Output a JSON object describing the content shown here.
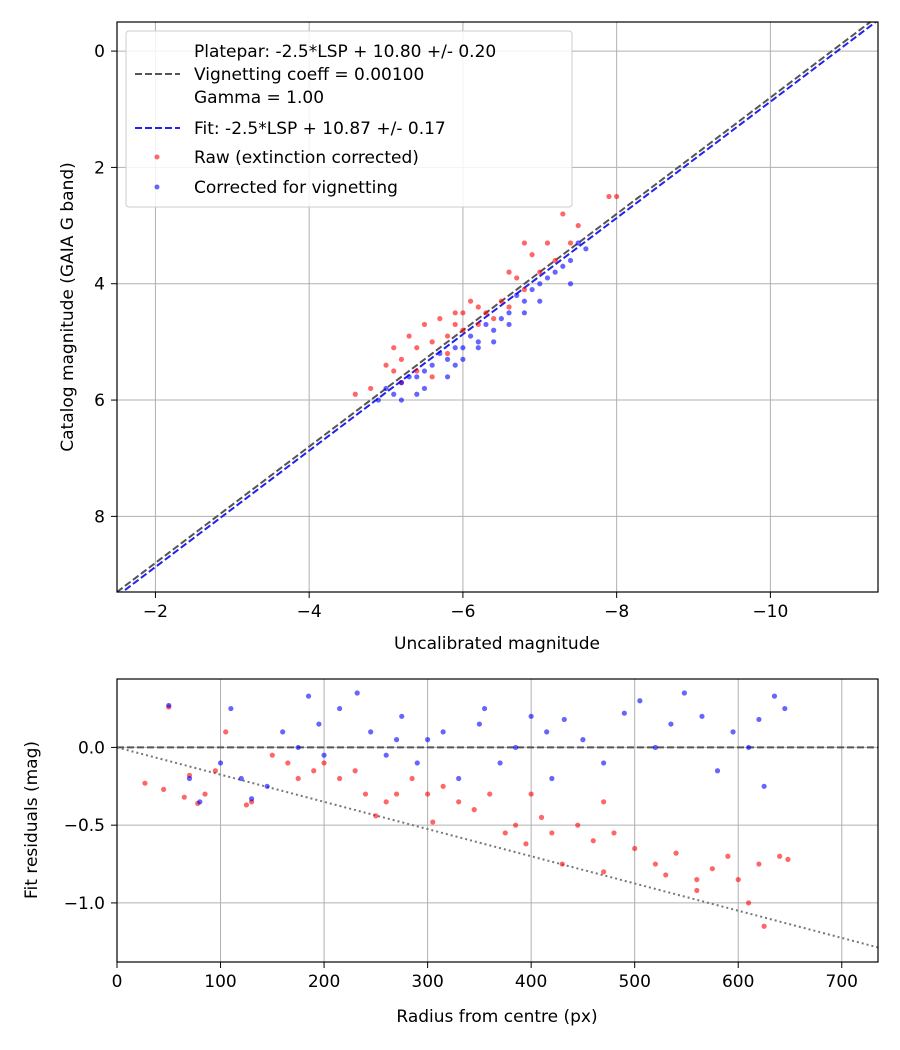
{
  "chart_data": [
    {
      "type": "scatter",
      "xlabel": "Uncalibrated magnitude",
      "ylabel": "Catalog magnitude (GAIA G band)",
      "xlim": [
        -1.5,
        -11.4
      ],
      "ylim": [
        9.3,
        -0.5
      ],
      "xticks": [
        -2,
        -4,
        -6,
        -8,
        -10
      ],
      "xtick_labels": [
        "−2",
        "−4",
        "−6",
        "−8",
        "−10"
      ],
      "yticks": [
        0,
        2,
        4,
        6,
        8
      ],
      "ytick_labels": [
        "0",
        "2",
        "4",
        "6",
        "8"
      ],
      "grid": true,
      "legend_position": "top-left",
      "legend": {
        "platepar_lines": [
          "Platepar: -2.5*LSP + 10.80 +/- 0.20",
          "Vignetting coeff = 0.00100",
          "Gamma = 1.00"
        ],
        "fit_label": "Fit: -2.5*LSP + 10.87 +/- 0.17",
        "raw_label": "Raw (extinction corrected)",
        "corrected_label": "Corrected for vignetting"
      },
      "lines": [
        {
          "name": "Platepar",
          "slope": 1.0,
          "intercept": 10.8,
          "style": "dashed",
          "color": "#555555"
        },
        {
          "name": "Fit",
          "slope": 1.0,
          "intercept": 10.87,
          "style": "dashed",
          "color": "#2222ee"
        }
      ],
      "series": [
        {
          "name": "Raw (extinction corrected)",
          "color": "#ff0000",
          "points": [
            [
              -5.0,
              5.4
            ],
            [
              -5.2,
              5.3
            ],
            [
              -5.4,
              5.5
            ],
            [
              -5.6,
              5.0
            ],
            [
              -5.8,
              5.2
            ],
            [
              -6.0,
              4.8
            ],
            [
              -6.2,
              4.7
            ],
            [
              -6.4,
              4.6
            ],
            [
              -6.6,
              4.4
            ],
            [
              -6.8,
              4.1
            ],
            [
              -7.0,
              3.8
            ],
            [
              -7.2,
              3.6
            ],
            [
              -7.1,
              3.3
            ],
            [
              -7.3,
              2.8
            ],
            [
              -7.5,
              3.0
            ],
            [
              -8.0,
              2.5
            ],
            [
              -7.9,
              2.5
            ],
            [
              -4.6,
              5.9
            ],
            [
              -4.8,
              5.8
            ],
            [
              -5.1,
              5.1
            ],
            [
              -5.3,
              4.9
            ],
            [
              -5.5,
              4.7
            ],
            [
              -5.7,
              4.6
            ],
            [
              -5.9,
              4.5
            ],
            [
              -6.1,
              4.3
            ],
            [
              -6.3,
              4.5
            ],
            [
              -6.5,
              4.3
            ],
            [
              -6.7,
              3.9
            ],
            [
              -6.9,
              3.5
            ],
            [
              -7.4,
              3.3
            ],
            [
              -5.2,
              5.7
            ],
            [
              -5.6,
              5.6
            ],
            [
              -5.8,
              4.9
            ],
            [
              -6.0,
              4.5
            ],
            [
              -6.6,
              3.8
            ],
            [
              -6.8,
              3.3
            ],
            [
              -5.1,
              5.5
            ],
            [
              -5.4,
              5.1
            ],
            [
              -5.9,
              4.7
            ],
            [
              -6.2,
              4.4
            ]
          ]
        },
        {
          "name": "Corrected for vignetting",
          "color": "#0000ff",
          "points": [
            [
              -5.0,
              5.8
            ],
            [
              -5.2,
              5.7
            ],
            [
              -5.4,
              5.6
            ],
            [
              -5.6,
              5.4
            ],
            [
              -5.8,
              5.3
            ],
            [
              -6.0,
              5.1
            ],
            [
              -6.2,
              5.0
            ],
            [
              -6.4,
              4.8
            ],
            [
              -6.6,
              4.5
            ],
            [
              -6.8,
              4.3
            ],
            [
              -7.0,
              4.0
            ],
            [
              -7.2,
              3.8
            ],
            [
              -7.4,
              3.6
            ],
            [
              -7.5,
              3.3
            ],
            [
              -4.9,
              6.0
            ],
            [
              -5.1,
              5.9
            ],
            [
              -5.3,
              5.6
            ],
            [
              -5.5,
              5.5
            ],
            [
              -5.7,
              5.2
            ],
            [
              -5.9,
              5.1
            ],
            [
              -6.1,
              4.9
            ],
            [
              -6.3,
              4.7
            ],
            [
              -6.5,
              4.6
            ],
            [
              -6.7,
              4.2
            ],
            [
              -6.9,
              4.1
            ],
            [
              -7.1,
              3.9
            ],
            [
              -7.3,
              3.7
            ],
            [
              -7.6,
              3.4
            ],
            [
              -5.2,
              6.0
            ],
            [
              -5.5,
              5.8
            ],
            [
              -5.8,
              5.6
            ],
            [
              -6.0,
              5.3
            ],
            [
              -6.4,
              5.0
            ],
            [
              -6.6,
              4.7
            ],
            [
              -7.0,
              4.3
            ],
            [
              -7.4,
              4.0
            ],
            [
              -5.4,
              5.9
            ],
            [
              -5.9,
              5.4
            ],
            [
              -6.2,
              5.1
            ],
            [
              -6.8,
              4.5
            ]
          ]
        }
      ]
    },
    {
      "type": "scatter",
      "xlabel": "Radius from centre (px)",
      "ylabel": "Fit residuals (mag)",
      "xlim": [
        0,
        735
      ],
      "ylim": [
        -1.38,
        0.44
      ],
      "xticks": [
        0,
        100,
        200,
        300,
        400,
        500,
        600,
        700
      ],
      "xtick_labels": [
        "0",
        "100",
        "200",
        "300",
        "400",
        "500",
        "600",
        "700"
      ],
      "yticks": [
        0.0,
        -0.5,
        -1.0
      ],
      "ytick_labels": [
        "0.0",
        "−0.5",
        "−1.0"
      ],
      "grid": true,
      "lines": [
        {
          "name": "Zero line",
          "slope": 0,
          "intercept": 0,
          "style": "dashed",
          "color": "#555555"
        },
        {
          "name": "Vignetting model",
          "slope": -0.00175,
          "intercept": 0.0,
          "style": "dotted",
          "color": "#777777"
        }
      ],
      "series": [
        {
          "name": "Raw (extinction corrected)",
          "color": "#ff0000",
          "points": [
            [
              27,
              -0.23
            ],
            [
              45,
              -0.27
            ],
            [
              50,
              0.26
            ],
            [
              65,
              -0.32
            ],
            [
              70,
              -0.18
            ],
            [
              78,
              -0.36
            ],
            [
              85,
              -0.3
            ],
            [
              95,
              -0.15
            ],
            [
              105,
              0.1
            ],
            [
              125,
              -0.37
            ],
            [
              130,
              -0.35
            ],
            [
              150,
              -0.05
            ],
            [
              165,
              -0.1
            ],
            [
              175,
              -0.2
            ],
            [
              190,
              -0.15
            ],
            [
              200,
              -0.1
            ],
            [
              215,
              -0.2
            ],
            [
              230,
              -0.15
            ],
            [
              240,
              -0.3
            ],
            [
              250,
              -0.44
            ],
            [
              260,
              -0.35
            ],
            [
              270,
              -0.3
            ],
            [
              285,
              -0.2
            ],
            [
              300,
              -0.3
            ],
            [
              305,
              -0.48
            ],
            [
              315,
              -0.25
            ],
            [
              330,
              -0.35
            ],
            [
              345,
              -0.4
            ],
            [
              360,
              -0.3
            ],
            [
              375,
              -0.55
            ],
            [
              385,
              -0.5
            ],
            [
              395,
              -0.62
            ],
            [
              410,
              -0.45
            ],
            [
              420,
              -0.55
            ],
            [
              430,
              -0.75
            ],
            [
              445,
              -0.5
            ],
            [
              460,
              -0.6
            ],
            [
              470,
              -0.8
            ],
            [
              480,
              -0.55
            ],
            [
              500,
              -0.65
            ],
            [
              520,
              -0.75
            ],
            [
              540,
              -0.68
            ],
            [
              560,
              -0.85
            ],
            [
              575,
              -0.78
            ],
            [
              590,
              -0.7
            ],
            [
              600,
              -0.85
            ],
            [
              610,
              -1.0
            ],
            [
              620,
              -0.75
            ],
            [
              625,
              -1.15
            ],
            [
              640,
              -0.7
            ],
            [
              648,
              -0.72
            ],
            [
              560,
              -0.92
            ],
            [
              530,
              -0.82
            ],
            [
              470,
              -0.35
            ],
            [
              400,
              -0.3
            ]
          ]
        },
        {
          "name": "Corrected for vignetting",
          "color": "#0000ff",
          "points": [
            [
              50,
              0.27
            ],
            [
              70,
              -0.2
            ],
            [
              80,
              -0.35
            ],
            [
              100,
              -0.1
            ],
            [
              110,
              0.25
            ],
            [
              130,
              -0.33
            ],
            [
              145,
              -0.25
            ],
            [
              160,
              0.1
            ],
            [
              175,
              0.0
            ],
            [
              185,
              0.33
            ],
            [
              200,
              -0.05
            ],
            [
              215,
              0.25
            ],
            [
              232,
              0.35
            ],
            [
              245,
              0.1
            ],
            [
              260,
              -0.05
            ],
            [
              275,
              0.2
            ],
            [
              290,
              -0.1
            ],
            [
              300,
              0.05
            ],
            [
              315,
              0.1
            ],
            [
              330,
              -0.2
            ],
            [
              350,
              0.15
            ],
            [
              370,
              -0.1
            ],
            [
              385,
              0.0
            ],
            [
              400,
              0.2
            ],
            [
              415,
              0.1
            ],
            [
              432,
              0.18
            ],
            [
              450,
              0.05
            ],
            [
              470,
              -0.1
            ],
            [
              490,
              0.22
            ],
            [
              505,
              0.3
            ],
            [
              520,
              0.0
            ],
            [
              535,
              0.15
            ],
            [
              548,
              0.35
            ],
            [
              565,
              0.2
            ],
            [
              580,
              -0.15
            ],
            [
              595,
              0.1
            ],
            [
              610,
              0.0
            ],
            [
              620,
              0.18
            ],
            [
              625,
              -0.25
            ],
            [
              635,
              0.33
            ],
            [
              645,
              0.25
            ],
            [
              420,
              -0.2
            ],
            [
              355,
              0.25
            ],
            [
              270,
              0.05
            ],
            [
              195,
              0.15
            ],
            [
              120,
              -0.2
            ]
          ]
        }
      ]
    }
  ]
}
